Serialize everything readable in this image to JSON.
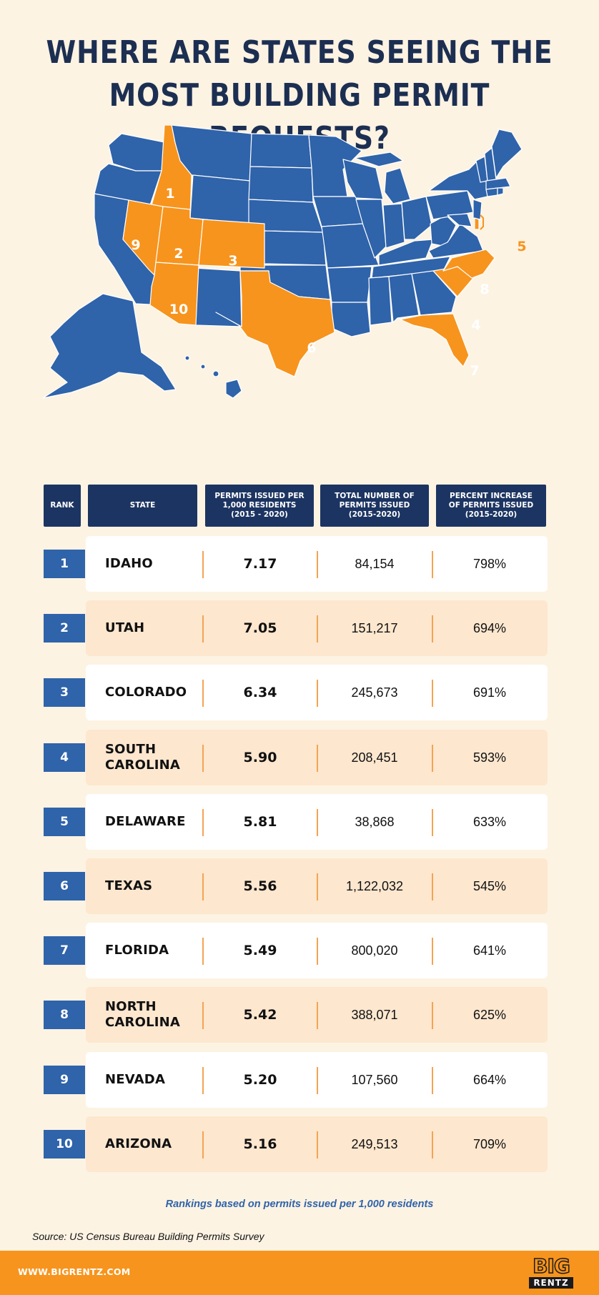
{
  "title": {
    "line1": "WHERE ARE STATES SEEING THE",
    "line2": "MOST BUILDING PERMIT REQUESTS?"
  },
  "map": {
    "labels": [
      "1",
      "2",
      "3",
      "4",
      "5",
      "6",
      "7",
      "8",
      "9",
      "10"
    ],
    "colors": {
      "default": "#2f63aa",
      "highlight": "#f7941d",
      "border": "#ffffff",
      "label": "#ffffff"
    }
  },
  "table": {
    "headers": {
      "rank": "RANK",
      "state": "STATE",
      "per_1000": [
        "PERMITS ISSUED PER",
        "1,000 RESIDENTS",
        "(2015 - 2020)"
      ],
      "total": [
        "TOTAL NUMBER OF",
        "PERMITS ISSUED",
        "(2015-2020)"
      ],
      "pct": [
        "PERCENT INCREASE",
        "OF PERMITS ISSUED",
        "(2015-2020)"
      ]
    },
    "rows": [
      {
        "rank": "1",
        "state": [
          "IDAHO"
        ],
        "per_1000": "7.17",
        "total": "84,154",
        "pct": "798%"
      },
      {
        "rank": "2",
        "state": [
          "UTAH"
        ],
        "per_1000": "7.05",
        "total": "151,217",
        "pct": "694%"
      },
      {
        "rank": "3",
        "state": [
          "COLORADO"
        ],
        "per_1000": "6.34",
        "total": "245,673",
        "pct": "691%"
      },
      {
        "rank": "4",
        "state": [
          "SOUTH",
          "CAROLINA"
        ],
        "per_1000": "5.90",
        "total": "208,451",
        "pct": "593%"
      },
      {
        "rank": "5",
        "state": [
          "DELAWARE"
        ],
        "per_1000": "5.81",
        "total": "38,868",
        "pct": "633%"
      },
      {
        "rank": "6",
        "state": [
          "TEXAS"
        ],
        "per_1000": "5.56",
        "total": "1,122,032",
        "pct": "545%"
      },
      {
        "rank": "7",
        "state": [
          "FLORIDA"
        ],
        "per_1000": "5.49",
        "total": "800,020",
        "pct": "641%"
      },
      {
        "rank": "8",
        "state": [
          "NORTH",
          "CAROLINA"
        ],
        "per_1000": "5.42",
        "total": "388,071",
        "pct": "625%"
      },
      {
        "rank": "9",
        "state": [
          "NEVADA"
        ],
        "per_1000": "5.20",
        "total": "107,560",
        "pct": "664%"
      },
      {
        "rank": "10",
        "state": [
          "ARIZONA"
        ],
        "per_1000": "5.16",
        "total": "249,513",
        "pct": "709%"
      }
    ]
  },
  "chart_data": {
    "type": "table",
    "title": "WHERE ARE STATES SEEING THE MOST BUILDING PERMIT REQUESTS?",
    "columns": [
      "RANK",
      "STATE",
      "PERMITS ISSUED PER 1,000 RESIDENTS (2015 - 2020)",
      "TOTAL NUMBER OF PERMITS ISSUED (2015-2020)",
      "PERCENT INCREASE OF PERMITS ISSUED (2015-2020)"
    ],
    "rows": [
      [
        1,
        "IDAHO",
        7.17,
        84154,
        798
      ],
      [
        2,
        "UTAH",
        7.05,
        151217,
        694
      ],
      [
        3,
        "COLORADO",
        6.34,
        245673,
        691
      ],
      [
        4,
        "SOUTH CAROLINA",
        5.9,
        208451,
        593
      ],
      [
        5,
        "DELAWARE",
        5.81,
        38868,
        633
      ],
      [
        6,
        "TEXAS",
        5.56,
        1122032,
        545
      ],
      [
        7,
        "FLORIDA",
        5.49,
        800020,
        641
      ],
      [
        8,
        "NORTH CAROLINA",
        5.42,
        388071,
        625
      ],
      [
        9,
        "NEVADA",
        5.2,
        107560,
        664
      ],
      [
        10,
        "ARIZONA",
        5.16,
        249513,
        709
      ]
    ]
  },
  "note": "Rankings based on permits issued per 1,000 residents",
  "source": "Source: US Census Bureau Building Permits Survey",
  "footer": {
    "url": "WWW.BIGRENTZ.COM",
    "logo_top": "BIG",
    "logo_bottom": "RENTZ"
  }
}
